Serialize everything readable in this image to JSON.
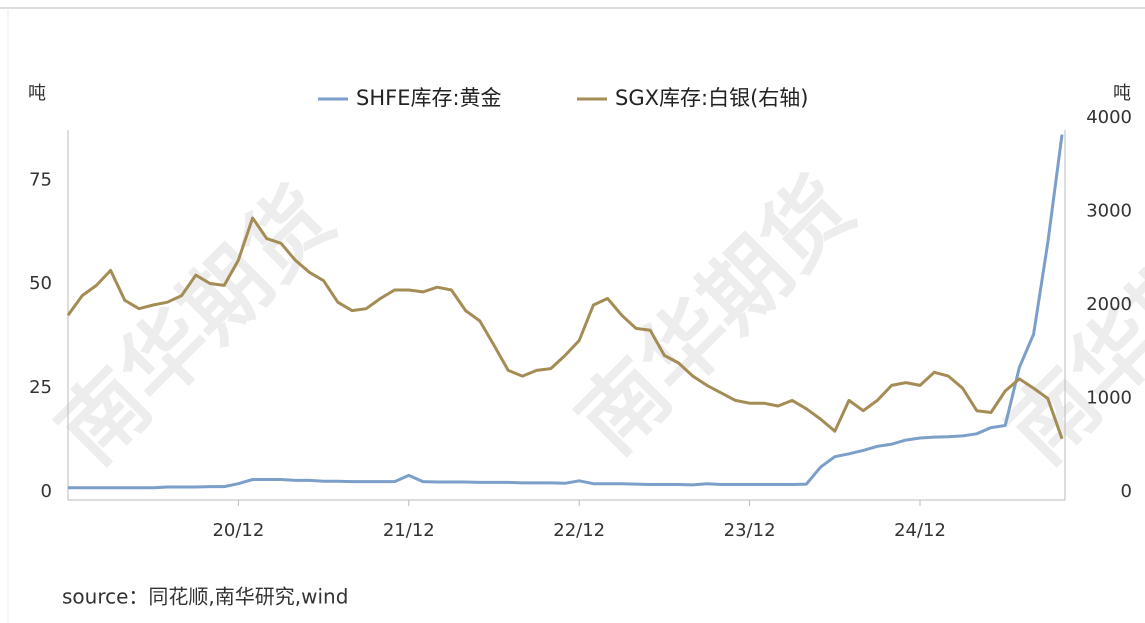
{
  "chart_data": {
    "type": "line",
    "y_unit": "吨",
    "y2_unit": "吨",
    "watermark": "南华期货",
    "source": "source：同花顺,南华研究,wind",
    "x": [
      "19/12",
      "20/01",
      "20/02",
      "20/03",
      "20/04",
      "20/05",
      "20/06",
      "20/07",
      "20/08",
      "20/09",
      "20/10",
      "20/11",
      "20/12",
      "21/01",
      "21/02",
      "21/03",
      "21/04",
      "21/05",
      "21/06",
      "21/07",
      "21/08",
      "21/09",
      "21/10",
      "21/11",
      "21/12",
      "22/01",
      "22/02",
      "22/03",
      "22/04",
      "22/05",
      "22/06",
      "22/07",
      "22/08",
      "22/09",
      "22/10",
      "22/11",
      "22/12",
      "23/01",
      "23/02",
      "23/03",
      "23/04",
      "23/05",
      "23/06",
      "23/07",
      "23/08",
      "23/09",
      "23/10",
      "23/11",
      "23/12",
      "24/01",
      "24/02",
      "24/03",
      "24/04",
      "24/05",
      "24/06",
      "24/07",
      "24/08",
      "24/09",
      "24/10",
      "24/11",
      "24/12",
      "25/01",
      "25/02",
      "25/03",
      "25/04",
      "25/05",
      "25/06",
      "25/07",
      "25/08",
      "25/09",
      "25/10"
    ],
    "xticks": [
      "20/12",
      "21/12",
      "22/12",
      "23/12",
      "24/12"
    ],
    "series": [
      {
        "name": "SHFE库存:黄金",
        "color": "#7b9fc8",
        "axis": "y",
        "values": [
          1,
          1,
          1,
          1,
          1,
          1,
          1,
          1.2,
          1.2,
          1.2,
          1.3,
          1.3,
          2,
          3,
          3,
          3,
          2.8,
          2.8,
          2.6,
          2.6,
          2.5,
          2.5,
          2.5,
          2.5,
          4,
          2.5,
          2.4,
          2.4,
          2.4,
          2.3,
          2.3,
          2.3,
          2.2,
          2.2,
          2.2,
          2.1,
          2.7,
          2,
          2,
          2,
          1.9,
          1.8,
          1.8,
          1.8,
          1.7,
          2,
          1.8,
          1.8,
          1.8,
          1.8,
          1.8,
          1.8,
          1.9,
          6,
          8.5,
          9.2,
          10,
          11,
          11.5,
          12.5,
          13,
          13.2,
          13.3,
          13.5,
          14,
          15.5,
          16,
          30,
          38,
          60,
          86
        ]
      },
      {
        "name": "SGX库存:白银(右轴)",
        "color": "#a48d55",
        "axis": "y2",
        "values": [
          1890,
          2100,
          2210,
          2370,
          2050,
          1960,
          2000,
          2030,
          2100,
          2320,
          2230,
          2210,
          2480,
          2930,
          2710,
          2660,
          2480,
          2350,
          2260,
          2030,
          1940,
          1960,
          2070,
          2160,
          2160,
          2140,
          2190,
          2160,
          1940,
          1830,
          1570,
          1300,
          1240,
          1300,
          1320,
          1460,
          1620,
          2000,
          2070,
          1890,
          1750,
          1730,
          1460,
          1380,
          1240,
          1140,
          1060,
          980,
          950,
          950,
          920,
          980,
          890,
          780,
          650,
          980,
          870,
          980,
          1140,
          1170,
          1140,
          1280,
          1240,
          1110,
          870,
          850,
          1080,
          1210,
          1110,
          1000,
          570
        ]
      }
    ],
    "ylim": [
      0,
      90
    ],
    "yticks": [
      0,
      25,
      50,
      75
    ],
    "y2lim": [
      0,
      4000
    ],
    "y2ticks": [
      0,
      1000,
      2000,
      3000,
      4000
    ],
    "legend": "top"
  }
}
